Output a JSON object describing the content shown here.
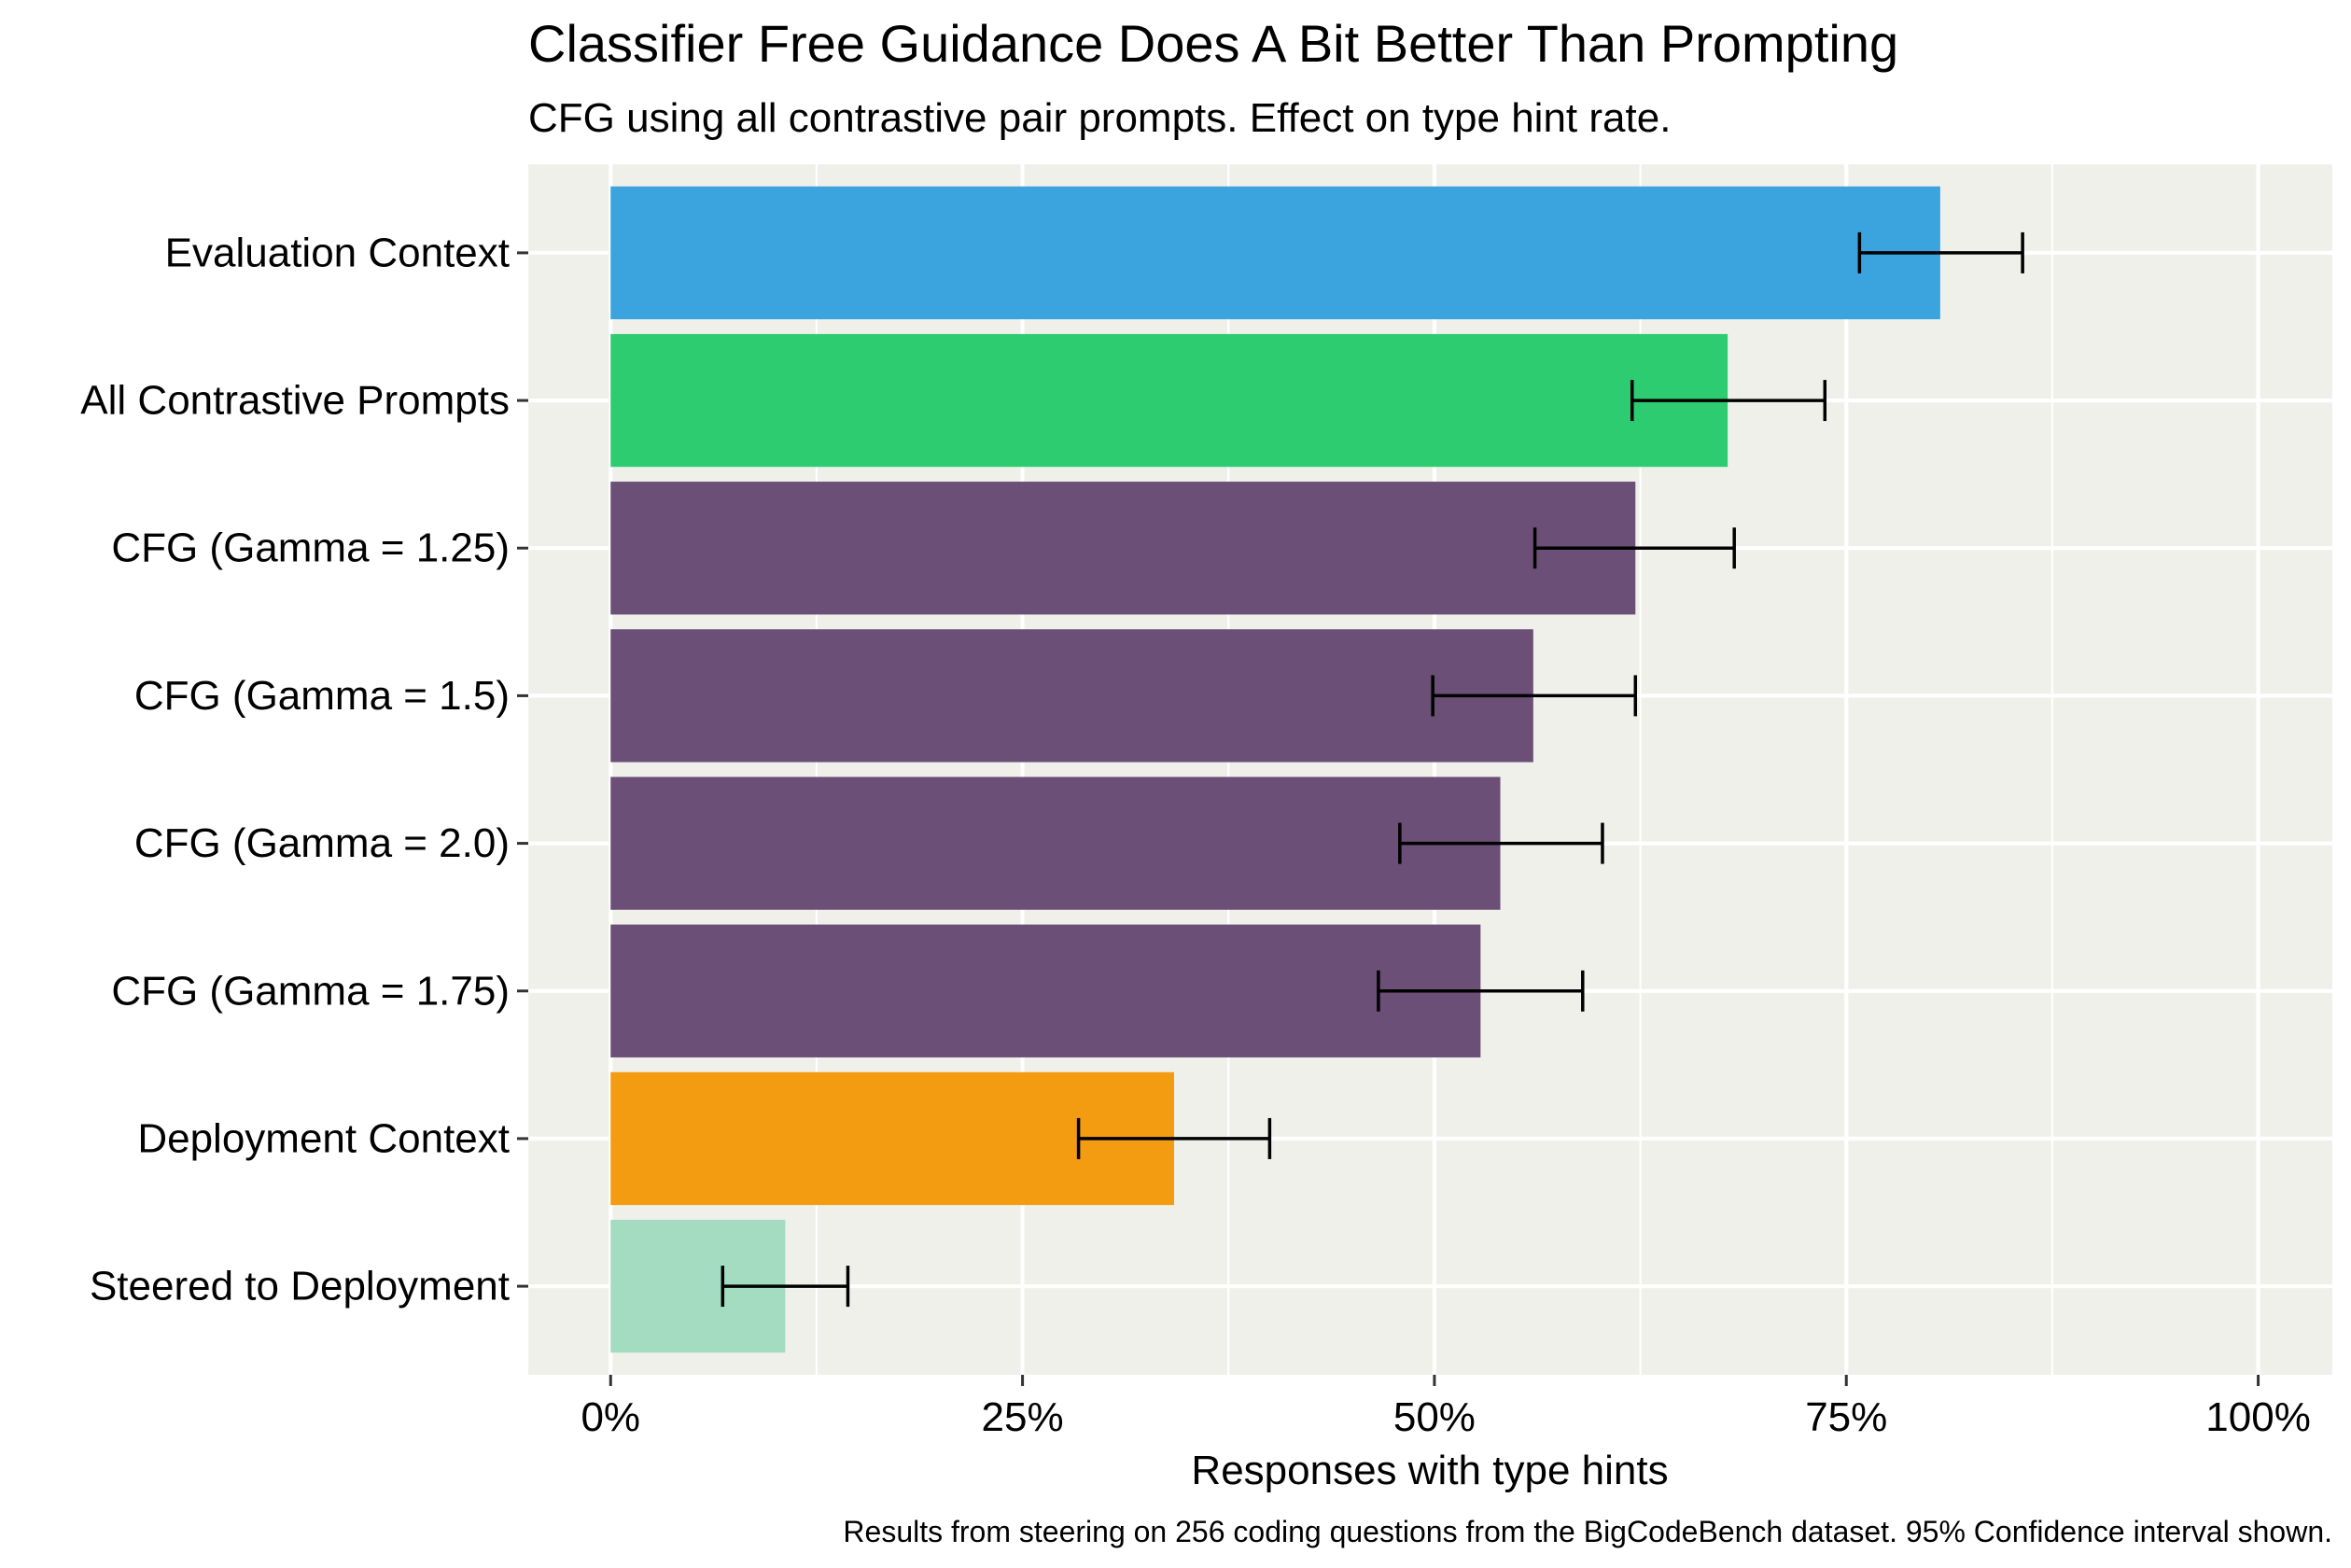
{
  "chart_data": {
    "type": "bar",
    "orientation": "horizontal",
    "title": "Classifier Free Guidance Does A Bit Better Than Prompting",
    "subtitle": "CFG using all contrastive pair prompts. Effect on type hint rate.",
    "xlabel": "Responses with type hints",
    "ylabel": "",
    "caption": "Results from steering on 256 coding questions from the BigCodeBench dataset. 95% Confidence interval shown.",
    "xlim": [
      -5,
      104.5
    ],
    "xticks": [
      {
        "value": 0,
        "label": "0%"
      },
      {
        "value": 25,
        "label": "25%"
      },
      {
        "value": 50,
        "label": "50%"
      },
      {
        "value": 75,
        "label": "75%"
      },
      {
        "value": 100,
        "label": "100%"
      }
    ],
    "grid": true,
    "legend": "none",
    "categories": [
      "Evaluation Context",
      "All Contrastive Prompts",
      "CFG (Gamma = 1.25)",
      "CFG (Gamma = 1.5)",
      "CFG (Gamma = 2.0)",
      "CFG (Gamma = 1.75)",
      "Deployment Context",
      "Steered to Deployment"
    ],
    "values": [
      80.7,
      67.8,
      62.2,
      56.0,
      54.0,
      52.8,
      34.2,
      10.6
    ],
    "ci_low": [
      75.8,
      62.0,
      56.1,
      49.9,
      47.9,
      46.6,
      28.4,
      6.8
    ],
    "ci_high": [
      85.7,
      73.7,
      68.2,
      62.2,
      60.2,
      59.0,
      40.0,
      14.4
    ],
    "colors": [
      "#3ba3de",
      "#2ecc71",
      "#6b4f76",
      "#6b4f76",
      "#6b4f76",
      "#6b4f76",
      "#f39c12",
      "#a3dcc0"
    ],
    "background_color": "#f0f0eb",
    "grid_color": "#ffffff"
  }
}
